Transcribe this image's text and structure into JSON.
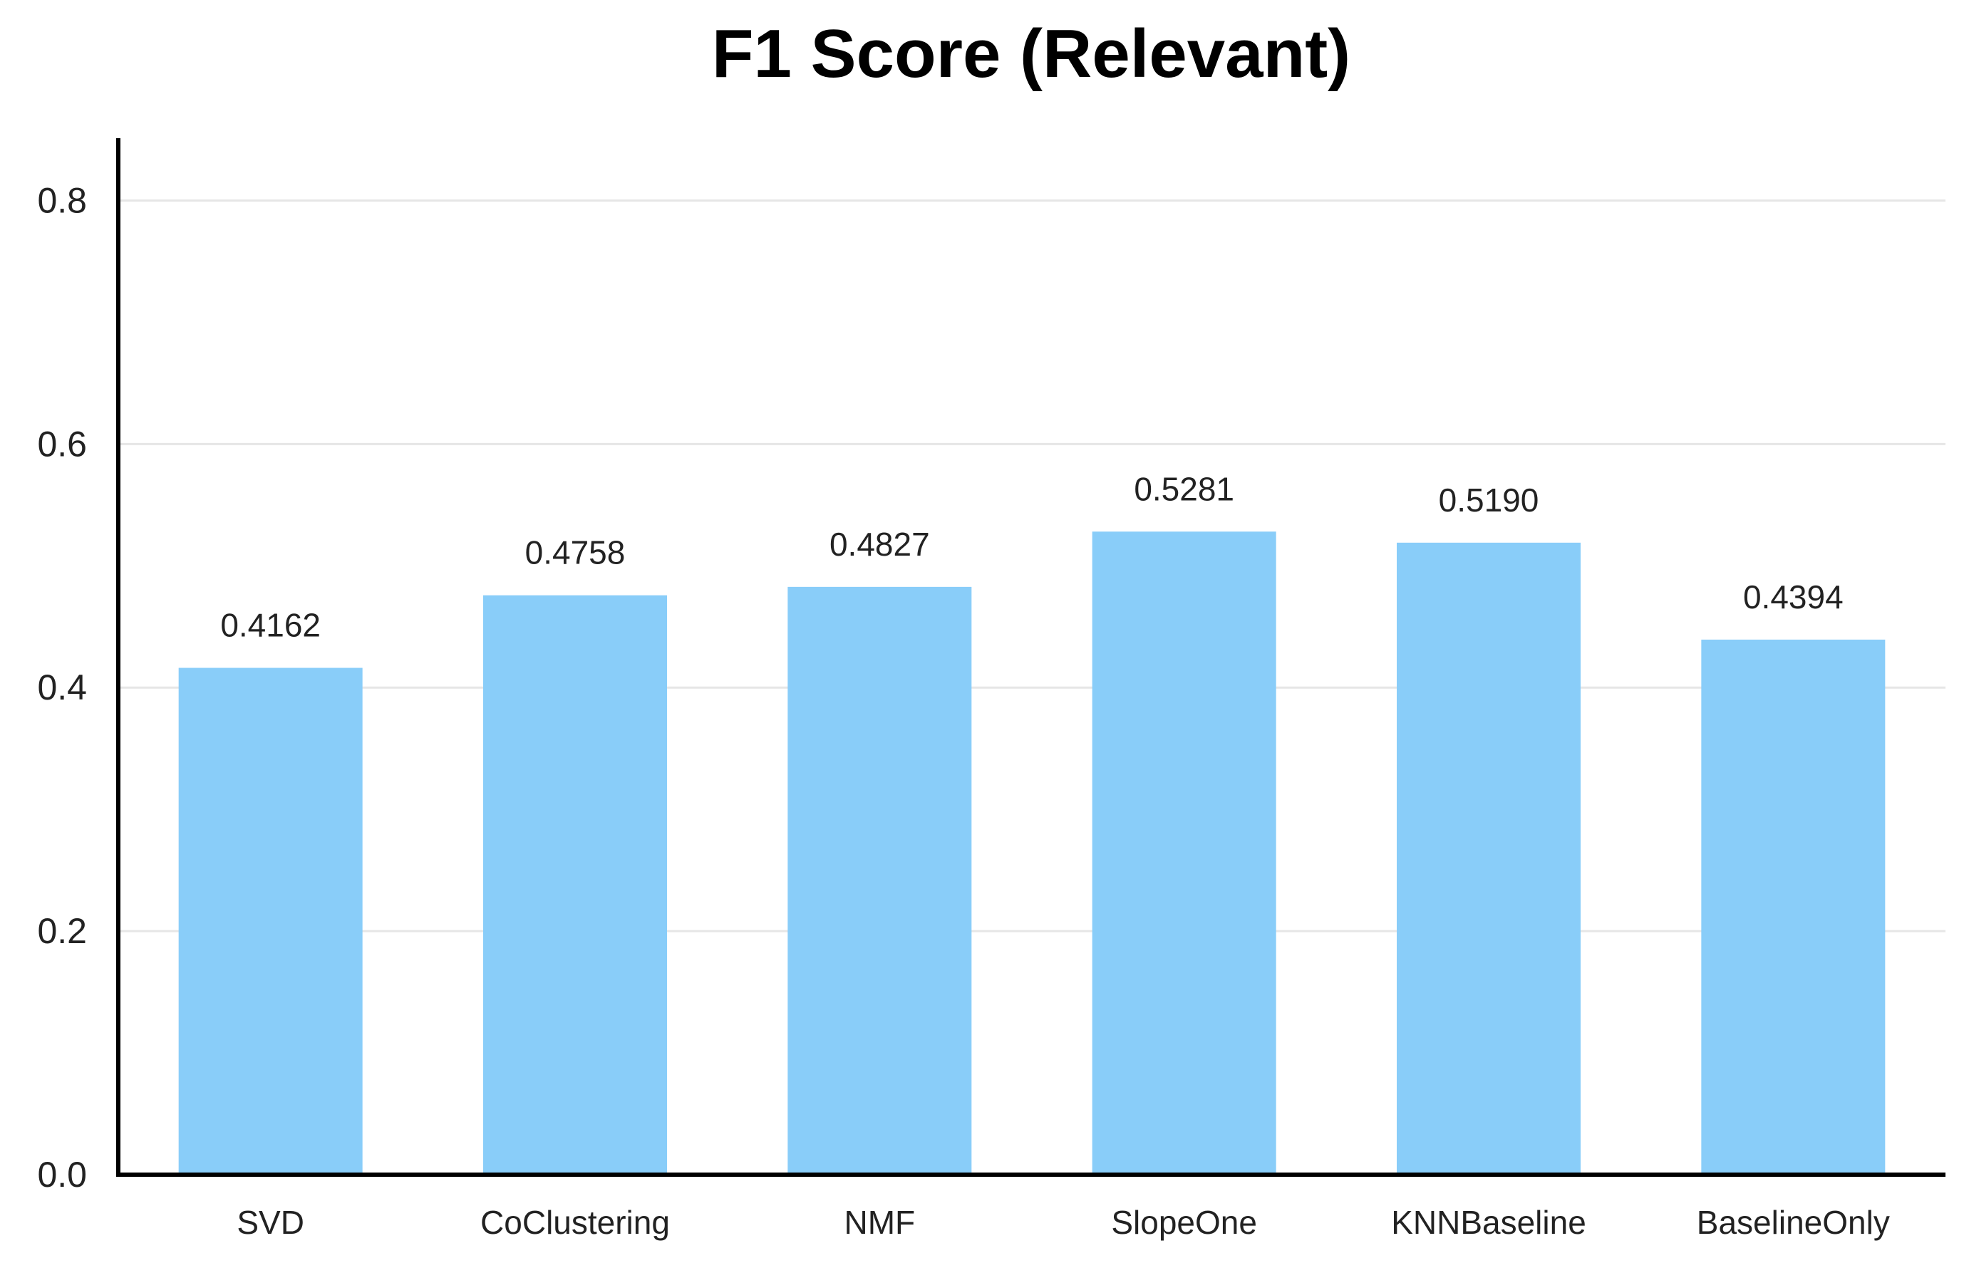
{
  "chart_data": {
    "type": "bar",
    "title": "F1 Score (Relevant)",
    "xlabel": "",
    "ylabel": "",
    "categories": [
      "SVD",
      "CoClustering",
      "NMF",
      "SlopeOne",
      "KNNBaseline",
      "BaselineOnly"
    ],
    "values": [
      0.4162,
      0.4758,
      0.4827,
      0.5281,
      0.519,
      0.4394
    ],
    "value_labels": [
      "0.4162",
      "0.4758",
      "0.4827",
      "0.5281",
      "0.5190",
      "0.4394"
    ],
    "ylim": [
      0,
      0.85
    ],
    "yticks": [
      0.0,
      0.2,
      0.4,
      0.6,
      0.8
    ],
    "ytick_labels": [
      "0.0",
      "0.2",
      "0.4",
      "0.6",
      "0.8"
    ],
    "grid": true,
    "legend": "none",
    "bar_color": "#89CDF9",
    "grid_color": "#E6E6E6",
    "axis_color": "#000000"
  }
}
